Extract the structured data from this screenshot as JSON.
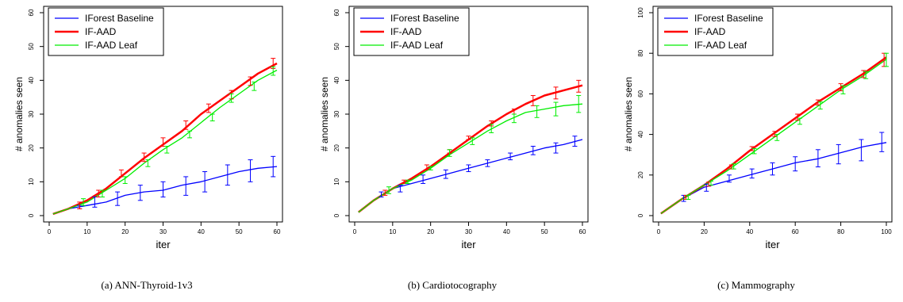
{
  "chart_data": [
    {
      "type": "line",
      "caption": "(a) ANN-Thyroid-1v3",
      "xlabel": "iter",
      "ylabel": "# anomalies seen",
      "xlim": [
        0,
        60
      ],
      "ylim": [
        0,
        60
      ],
      "xticks": [
        0,
        10,
        20,
        30,
        40,
        50,
        60
      ],
      "yticks": [
        0,
        10,
        20,
        30,
        40,
        50,
        60
      ],
      "legend": "top-left",
      "series": [
        {
          "name": "IForest Baseline",
          "color": "#0000ff",
          "x": [
            1,
            5,
            10,
            15,
            20,
            25,
            30,
            35,
            40,
            45,
            50,
            55,
            60
          ],
          "y": [
            0.5,
            2,
            3,
            4,
            6,
            7,
            7.5,
            9,
            10,
            11.5,
            13,
            14,
            14.5
          ],
          "error_x": [
            8,
            12,
            18,
            24,
            30,
            36,
            41,
            47,
            53,
            59
          ],
          "error_y": [
            [
              2,
              3
            ],
            [
              2.5,
              5.5
            ],
            [
              3,
              7
            ],
            [
              4.5,
              9
            ],
            [
              5.5,
              10
            ],
            [
              6,
              11.5
            ],
            [
              7,
              13
            ],
            [
              9,
              15
            ],
            [
              10,
              16.5
            ],
            [
              11.5,
              17.5
            ]
          ]
        },
        {
          "name": "IF-AAD",
          "color": "#ff0000",
          "x": [
            1,
            5,
            10,
            15,
            20,
            25,
            30,
            35,
            40,
            45,
            50,
            55,
            60
          ],
          "y": [
            0.5,
            2,
            4.5,
            8,
            12.5,
            17,
            21,
            25,
            30,
            34,
            38,
            42,
            45
          ],
          "error_x": [
            8,
            13,
            19,
            25,
            30,
            36,
            42,
            48,
            53,
            59
          ],
          "error_y": [
            [
              2,
              4
            ],
            [
              5.5,
              7.5
            ],
            [
              11.5,
              13.5
            ],
            [
              16,
              18.5
            ],
            [
              20.5,
              23
            ],
            [
              25.5,
              28
            ],
            [
              30.5,
              33
            ],
            [
              34.5,
              37
            ],
            [
              38.5,
              41
            ],
            [
              43.5,
              46.5
            ]
          ]
        },
        {
          "name": "IF-AAD Leaf",
          "color": "#00ee00",
          "x": [
            1,
            5,
            10,
            15,
            20,
            25,
            30,
            35,
            40,
            45,
            50,
            55,
            60
          ],
          "y": [
            0.5,
            2,
            4,
            7.5,
            11,
            15.5,
            19.5,
            23,
            27.5,
            32,
            36,
            40,
            43
          ],
          "error_x": [
            9,
            14,
            20,
            26,
            31,
            37,
            43,
            48,
            54,
            59
          ],
          "error_y": [
            [
              3,
              5
            ],
            [
              5.5,
              7.5
            ],
            [
              9.5,
              11.5
            ],
            [
              14.5,
              16.5
            ],
            [
              18.5,
              20.5
            ],
            [
              23,
              25
            ],
            [
              28,
              30
            ],
            [
              33.5,
              36
            ],
            [
              37,
              39.5
            ],
            [
              41.5,
              44
            ]
          ]
        }
      ]
    },
    {
      "type": "line",
      "caption": "(b) Cardiotocography",
      "xlabel": "iter",
      "ylabel": "# anomalies seen",
      "xlim": [
        0,
        60
      ],
      "ylim": [
        0,
        60
      ],
      "xticks": [
        0,
        10,
        20,
        30,
        40,
        50,
        60
      ],
      "yticks": [
        0,
        10,
        20,
        30,
        40,
        50,
        60
      ],
      "legend": "top-left",
      "series": [
        {
          "name": "IForest Baseline",
          "color": "#0000ff",
          "x": [
            1,
            5,
            10,
            15,
            20,
            25,
            30,
            35,
            40,
            45,
            50,
            55,
            60
          ],
          "y": [
            1,
            4.5,
            8,
            9.5,
            11,
            12.5,
            14,
            15.5,
            17,
            18.5,
            20,
            21,
            22.5
          ],
          "error_x": [
            7,
            12,
            18,
            24,
            30,
            35,
            41,
            47,
            53,
            58
          ],
          "error_y": [
            [
              5.5,
              7
            ],
            [
              7,
              9
            ],
            [
              9.5,
              12
            ],
            [
              11,
              13.5
            ],
            [
              13,
              15
            ],
            [
              14.5,
              16.5
            ],
            [
              16.5,
              18.5
            ],
            [
              18,
              20.5
            ],
            [
              18.5,
              21.5
            ],
            [
              20.5,
              23.5
            ]
          ]
        },
        {
          "name": "IF-AAD",
          "color": "#ff0000",
          "x": [
            1,
            5,
            10,
            15,
            20,
            25,
            30,
            35,
            40,
            45,
            50,
            55,
            60
          ],
          "y": [
            1,
            4.5,
            8,
            11,
            14.5,
            18.5,
            22.5,
            26.5,
            30,
            33,
            35.5,
            37,
            38.5
          ],
          "error_x": [
            8,
            13,
            19,
            25,
            30,
            36,
            42,
            47,
            53,
            59
          ],
          "error_y": [
            [
              6,
              7.5
            ],
            [
              9.5,
              10.5
            ],
            [
              13.5,
              15
            ],
            [
              18.5,
              19.5
            ],
            [
              22.5,
              23.5
            ],
            [
              26.5,
              28
            ],
            [
              30,
              31.5
            ],
            [
              32.5,
              35.5
            ],
            [
              34.5,
              38
            ],
            [
              36.5,
              40
            ]
          ]
        },
        {
          "name": "IF-AAD Leaf",
          "color": "#00ee00",
          "x": [
            1,
            5,
            10,
            15,
            20,
            25,
            30,
            35,
            40,
            45,
            50,
            55,
            60
          ],
          "y": [
            1,
            4.5,
            8,
            10.5,
            14,
            18,
            21.5,
            25,
            28,
            30.5,
            31.5,
            32.5,
            33
          ],
          "error_x": [
            9,
            14,
            20,
            25,
            31,
            36,
            42,
            48,
            53,
            59
          ],
          "error_y": [
            [
              6.5,
              8.5
            ],
            [
              9.5,
              10.5
            ],
            [
              13.5,
              14.5
            ],
            [
              17.5,
              19.5
            ],
            [
              21,
              23
            ],
            [
              24.5,
              27
            ],
            [
              27.5,
              30
            ],
            [
              29,
              32.5
            ],
            [
              29.5,
              33.5
            ],
            [
              30.5,
              35.5
            ]
          ]
        }
      ]
    },
    {
      "type": "line",
      "caption": "(c) Mammography",
      "xlabel": "iter",
      "ylabel": "# anomalies seen",
      "xlim": [
        0,
        100
      ],
      "ylim": [
        0,
        100
      ],
      "xticks": [
        0,
        20,
        40,
        60,
        80,
        100
      ],
      "yticks": [
        0,
        20,
        40,
        60,
        80,
        100
      ],
      "legend": "top-left",
      "series": [
        {
          "name": "IForest Baseline",
          "color": "#0000ff",
          "x": [
            1,
            10,
            20,
            30,
            40,
            50,
            60,
            70,
            80,
            90,
            100
          ],
          "y": [
            1,
            8,
            14,
            17,
            20,
            23,
            26,
            28,
            31,
            34,
            36
          ],
          "error_x": [
            11,
            21,
            31,
            41,
            50,
            60,
            70,
            79,
            89,
            98
          ],
          "error_y": [
            [
              7,
              10
            ],
            [
              12,
              15.5
            ],
            [
              16.5,
              20
            ],
            [
              18.5,
              23
            ],
            [
              20,
              26
            ],
            [
              22,
              29
            ],
            [
              24,
              32.5
            ],
            [
              25.5,
              35
            ],
            [
              27,
              37.5
            ],
            [
              31.5,
              41
            ]
          ]
        },
        {
          "name": "IF-AAD",
          "color": "#ff0000",
          "x": [
            1,
            10,
            20,
            30,
            40,
            50,
            60,
            70,
            80,
            90,
            100
          ],
          "y": [
            1,
            8,
            15,
            23,
            32,
            40,
            48,
            56,
            63,
            70,
            78
          ],
          "error_x": [
            12,
            22,
            32,
            41,
            51,
            61,
            70,
            80,
            90,
            99
          ],
          "error_y": [
            [
              8,
              10
            ],
            [
              14.5,
              16.5
            ],
            [
              23,
              25
            ],
            [
              32,
              34
            ],
            [
              39,
              41.5
            ],
            [
              47,
              50
            ],
            [
              54.5,
              57
            ],
            [
              61.5,
              65
            ],
            [
              68,
              71.5
            ],
            [
              73.5,
              80
            ]
          ]
        },
        {
          "name": "IF-AAD Leaf",
          "color": "#00ee00",
          "x": [
            1,
            10,
            20,
            30,
            40,
            50,
            60,
            70,
            80,
            90,
            100
          ],
          "y": [
            1,
            8,
            15,
            22,
            30,
            38,
            46,
            54,
            62,
            69,
            77
          ],
          "error_x": [
            13,
            23,
            33,
            42,
            52,
            62,
            71,
            81,
            91,
            100
          ],
          "error_y": [
            [
              8,
              10
            ],
            [
              15,
              17
            ],
            [
              23,
              25.5
            ],
            [
              30.5,
              33
            ],
            [
              37,
              40
            ],
            [
              45,
              48
            ],
            [
              52.5,
              56
            ],
            [
              60,
              64
            ],
            [
              67.5,
              71
            ],
            [
              73.5,
              80
            ]
          ]
        }
      ]
    }
  ]
}
